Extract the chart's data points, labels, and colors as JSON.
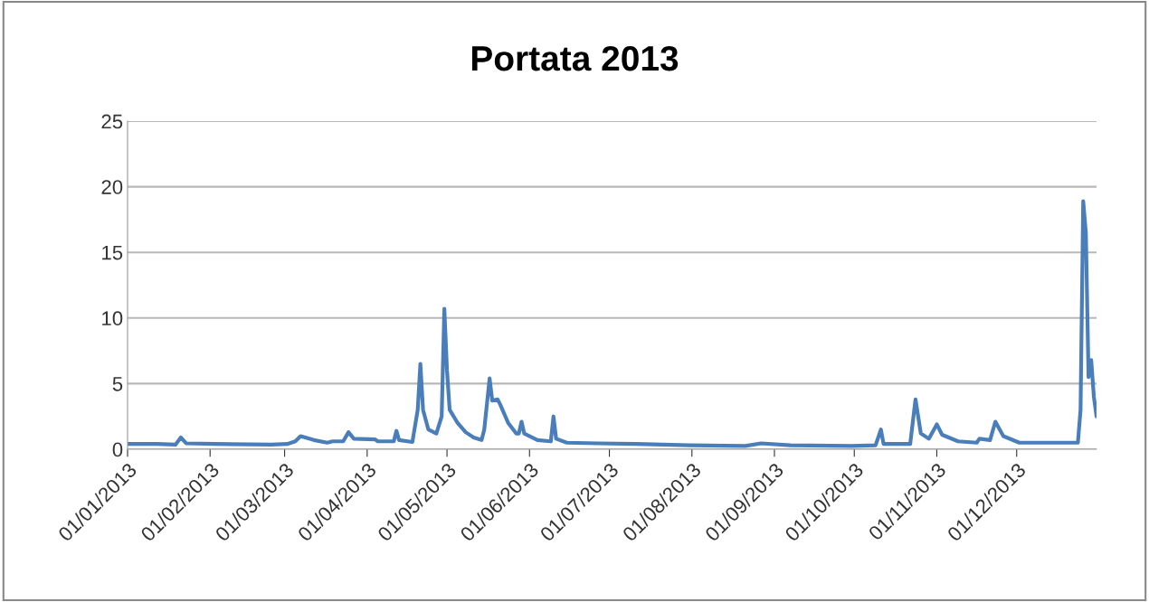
{
  "chart_data": {
    "type": "line",
    "title": "Portata 2013",
    "x": [
      "2013-01-01",
      "2013-01-12",
      "2013-01-19",
      "2013-01-21",
      "2013-01-23",
      "2013-02-03",
      "2013-02-24",
      "2013-03-02",
      "2013-03-05",
      "2013-03-07",
      "2013-03-12",
      "2013-03-17",
      "2013-03-19",
      "2013-03-23",
      "2013-03-25",
      "2013-03-27",
      "2013-04-04",
      "2013-04-05",
      "2013-04-11",
      "2013-04-12",
      "2013-04-13",
      "2013-04-18",
      "2013-04-20",
      "2013-04-21",
      "2013-04-22",
      "2013-04-24",
      "2013-04-27",
      "2013-04-29",
      "2013-04-30",
      "2013-05-01",
      "2013-05-02",
      "2013-05-05",
      "2013-05-08",
      "2013-05-11",
      "2013-05-14",
      "2013-05-15",
      "2013-05-17",
      "2013-05-18",
      "2013-05-20",
      "2013-05-21",
      "2013-05-24",
      "2013-05-27",
      "2013-05-28",
      "2013-05-29",
      "2013-05-30",
      "2013-06-04",
      "2013-06-09",
      "2013-06-10",
      "2013-06-11",
      "2013-06-15",
      "2013-06-27",
      "2013-07-11",
      "2013-07-31",
      "2013-08-21",
      "2013-08-27",
      "2013-09-07",
      "2013-09-30",
      "2013-10-09",
      "2013-10-11",
      "2013-10-12",
      "2013-10-22",
      "2013-10-24",
      "2013-10-26",
      "2013-10-29",
      "2013-11-01",
      "2013-11-03",
      "2013-11-09",
      "2013-11-16",
      "2013-11-17",
      "2013-11-21",
      "2013-11-23",
      "2013-11-26",
      "2013-12-02",
      "2013-12-21",
      "2013-12-24",
      "2013-12-25",
      "2013-12-26",
      "2013-12-27",
      "2013-12-28",
      "2013-12-29",
      "2013-12-30",
      "2013-12-31"
    ],
    "series": [
      {
        "color": "#4a7ebb",
        "values": [
          0.4,
          0.4,
          0.35,
          0.9,
          0.45,
          0.4,
          0.35,
          0.4,
          0.6,
          1.0,
          0.7,
          0.5,
          0.6,
          0.6,
          1.3,
          0.8,
          0.75,
          0.6,
          0.6,
          1.4,
          0.7,
          0.55,
          3,
          6.5,
          3,
          1.5,
          1.2,
          2.5,
          10.7,
          6,
          3.0,
          2,
          1.3,
          0.9,
          0.7,
          1.5,
          5.4,
          3.7,
          3.8,
          3.4,
          2.0,
          1.2,
          1.2,
          2.1,
          1.2,
          0.7,
          0.6,
          2.5,
          0.8,
          0.5,
          0.45,
          0.4,
          0.3,
          0.25,
          0.45,
          0.3,
          0.25,
          0.3,
          1.5,
          0.4,
          0.4,
          3.8,
          1.2,
          0.8,
          1.9,
          1.1,
          0.6,
          0.5,
          0.8,
          0.7,
          2.1,
          1.0,
          0.5,
          0.5,
          0.5,
          3,
          18.9,
          16.5,
          5.5,
          6.8,
          4,
          2.5
        ]
      }
    ],
    "xlim": [
      "2013-01-01",
      "2013-12-31"
    ],
    "xticks": [
      {
        "value": "2013-01-01",
        "label": "01/01/2013"
      },
      {
        "value": "2013-02-01",
        "label": "01/02/2013"
      },
      {
        "value": "2013-03-01",
        "label": "01/03/2013"
      },
      {
        "value": "2013-04-01",
        "label": "01/04/2013"
      },
      {
        "value": "2013-05-01",
        "label": "01/05/2013"
      },
      {
        "value": "2013-06-01",
        "label": "01/06/2013"
      },
      {
        "value": "2013-07-01",
        "label": "01/07/2013"
      },
      {
        "value": "2013-08-01",
        "label": "01/08/2013"
      },
      {
        "value": "2013-09-01",
        "label": "01/09/2013"
      },
      {
        "value": "2013-10-01",
        "label": "01/10/2013"
      },
      {
        "value": "2013-11-01",
        "label": "01/11/2013"
      },
      {
        "value": "2013-12-01",
        "label": "01/12/2013"
      }
    ],
    "ylim": [
      0,
      25
    ],
    "yticks": [
      0,
      5,
      10,
      15,
      20,
      25
    ],
    "grid": "y"
  }
}
